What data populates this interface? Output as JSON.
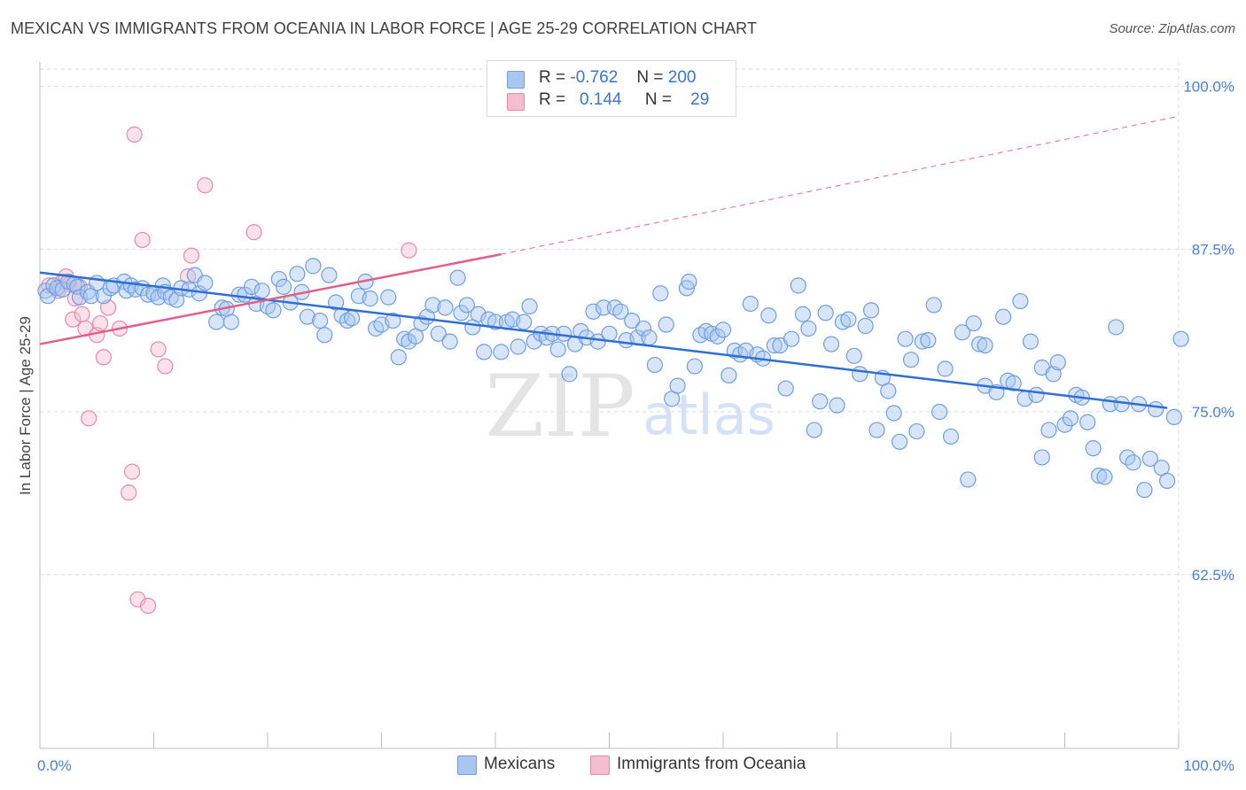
{
  "title": "MEXICAN VS IMMIGRANTS FROM OCEANIA IN LABOR FORCE | AGE 25-29 CORRELATION CHART",
  "source": "Source: ZipAtlas.com",
  "watermark": {
    "zip": "ZIP",
    "atlas": "atlas"
  },
  "colors": {
    "blue_fill": "#a9c6f0",
    "blue_stroke": "#6f9fe0",
    "blue_line": "#2f6fd4",
    "pink_fill": "#f6bdd0",
    "pink_stroke": "#e68bab",
    "pink_line": "#e0608c",
    "grid": "#d9d9d9",
    "tick_text": "#4a7fd4"
  },
  "legend": {
    "rows": [
      {
        "r_label": "R =",
        "r_value": "-0.762",
        "n_label": "N =",
        "n_value": "200"
      },
      {
        "r_label": "R =",
        "r_value": "0.144",
        "n_label": "N =",
        "n_value": "29"
      }
    ]
  },
  "bottom_legend": {
    "series1": "Mexicans",
    "series2": "Immigrants from Oceania"
  },
  "chart_data": {
    "type": "scatter",
    "title": "MEXICAN VS IMMIGRANTS FROM OCEANIA IN LABOR FORCE | AGE 25-29 CORRELATION CHART",
    "xlabel": "",
    "ylabel": "In Labor Force | Age 25-29",
    "xlim": [
      0,
      100
    ],
    "ylim": [
      50,
      102
    ],
    "x_tick_labels": [
      "0.0%",
      "100.0%"
    ],
    "y_ticks": [
      62.5,
      75.0,
      87.5,
      100.0
    ],
    "y_tick_labels": [
      "62.5%",
      "75.0%",
      "87.5%",
      "100.0%"
    ],
    "grid": true,
    "legend_position": "top-center",
    "series": [
      {
        "name": "Mexicans",
        "r": -0.762,
        "n": 200,
        "trend": {
          "x": [
            0,
            99
          ],
          "y": [
            85.7,
            75.3
          ],
          "dashed_extension": false
        },
        "points": [
          [
            0.5,
            84.3
          ],
          [
            0.7,
            83.9
          ],
          [
            1.2,
            84.7
          ],
          [
            1.5,
            84.5
          ],
          [
            2,
            84.4
          ],
          [
            2.5,
            85.0
          ],
          [
            3,
            84.8
          ],
          [
            3.3,
            84.6
          ],
          [
            3.5,
            83.8
          ],
          [
            4.2,
            84.2
          ],
          [
            4.5,
            83.9
          ],
          [
            5,
            84.9
          ],
          [
            5.6,
            83.9
          ],
          [
            6.2,
            84.5
          ],
          [
            6.5,
            84.7
          ],
          [
            7.4,
            85.0
          ],
          [
            7.6,
            84.3
          ],
          [
            8,
            84.7
          ],
          [
            8.4,
            84.4
          ],
          [
            9,
            84.5
          ],
          [
            9.5,
            84.0
          ],
          [
            10,
            84.1
          ],
          [
            10.4,
            83.8
          ],
          [
            10.8,
            84.7
          ],
          [
            11,
            84.2
          ],
          [
            11.5,
            83.8
          ],
          [
            12,
            83.6
          ],
          [
            12.4,
            84.5
          ],
          [
            13.1,
            84.4
          ],
          [
            13.6,
            85.5
          ],
          [
            14,
            84.1
          ],
          [
            14.5,
            84.9
          ],
          [
            15.5,
            81.9
          ],
          [
            16,
            83.0
          ],
          [
            16.4,
            82.9
          ],
          [
            16.8,
            81.9
          ],
          [
            17.5,
            84.0
          ],
          [
            18,
            84.0
          ],
          [
            18.6,
            84.6
          ],
          [
            19,
            83.3
          ],
          [
            19.5,
            84.3
          ],
          [
            20,
            83.1
          ],
          [
            20.5,
            82.8
          ],
          [
            21,
            85.2
          ],
          [
            21.4,
            84.6
          ],
          [
            22,
            83.4
          ],
          [
            22.6,
            85.6
          ],
          [
            23,
            84.2
          ],
          [
            23.5,
            82.3
          ],
          [
            24,
            86.2
          ],
          [
            24.6,
            82.0
          ],
          [
            25,
            80.9
          ],
          [
            25.4,
            85.5
          ],
          [
            26,
            83.4
          ],
          [
            26.5,
            82.4
          ],
          [
            27,
            82.0
          ],
          [
            27.4,
            82.2
          ],
          [
            28,
            83.9
          ],
          [
            28.6,
            85.0
          ],
          [
            29,
            83.7
          ],
          [
            29.5,
            81.4
          ],
          [
            30,
            81.7
          ],
          [
            30.6,
            83.8
          ],
          [
            31,
            82.0
          ],
          [
            31.5,
            79.2
          ],
          [
            32,
            80.6
          ],
          [
            32.4,
            80.4
          ],
          [
            33,
            80.8
          ],
          [
            33.5,
            81.8
          ],
          [
            34,
            82.3
          ],
          [
            34.5,
            83.2
          ],
          [
            35,
            81.0
          ],
          [
            35.6,
            83.0
          ],
          [
            36,
            80.4
          ],
          [
            36.7,
            85.3
          ],
          [
            37,
            82.6
          ],
          [
            37.5,
            83.2
          ],
          [
            38,
            81.5
          ],
          [
            38.5,
            82.5
          ],
          [
            39,
            79.6
          ],
          [
            39.4,
            82.1
          ],
          [
            40,
            81.9
          ],
          [
            40.5,
            79.6
          ],
          [
            41,
            81.9
          ],
          [
            41.5,
            82.1
          ],
          [
            42,
            80.0
          ],
          [
            42.5,
            81.9
          ],
          [
            43,
            83.1
          ],
          [
            43.4,
            80.4
          ],
          [
            44,
            81.0
          ],
          [
            44.5,
            80.7
          ],
          [
            45,
            81.0
          ],
          [
            45.5,
            79.8
          ],
          [
            46,
            81.0
          ],
          [
            46.5,
            77.9
          ],
          [
            47,
            80.2
          ],
          [
            47.5,
            81.2
          ],
          [
            48,
            80.7
          ],
          [
            48.6,
            82.7
          ],
          [
            49,
            80.4
          ],
          [
            49.5,
            83.0
          ],
          [
            50,
            81.0
          ],
          [
            50.5,
            83.0
          ],
          [
            51,
            82.7
          ],
          [
            51.5,
            80.5
          ],
          [
            52,
            82.0
          ],
          [
            52.5,
            80.7
          ],
          [
            53,
            81.4
          ],
          [
            53.5,
            80.7
          ],
          [
            54,
            78.6
          ],
          [
            54.5,
            84.1
          ],
          [
            55,
            81.7
          ],
          [
            55.5,
            76.0
          ],
          [
            56,
            77.0
          ],
          [
            56.8,
            84.5
          ],
          [
            57,
            85.0
          ],
          [
            57.5,
            78.5
          ],
          [
            58,
            80.9
          ],
          [
            58.5,
            81.2
          ],
          [
            59,
            81.0
          ],
          [
            59.5,
            80.8
          ],
          [
            60,
            81.3
          ],
          [
            60.5,
            77.8
          ],
          [
            61,
            79.7
          ],
          [
            61.5,
            79.4
          ],
          [
            62,
            79.7
          ],
          [
            62.4,
            83.3
          ],
          [
            63,
            79.4
          ],
          [
            63.5,
            79.1
          ],
          [
            64,
            82.4
          ],
          [
            64.5,
            80.1
          ],
          [
            65,
            80.1
          ],
          [
            65.5,
            76.8
          ],
          [
            66,
            80.6
          ],
          [
            66.6,
            84.7
          ],
          [
            67,
            82.5
          ],
          [
            67.5,
            81.4
          ],
          [
            68,
            73.6
          ],
          [
            68.5,
            75.8
          ],
          [
            69,
            82.6
          ],
          [
            69.5,
            80.2
          ],
          [
            70,
            75.5
          ],
          [
            70.5,
            81.9
          ],
          [
            71,
            82.1
          ],
          [
            71.5,
            79.3
          ],
          [
            72,
            77.9
          ],
          [
            72.5,
            81.6
          ],
          [
            73,
            82.8
          ],
          [
            73.5,
            73.6
          ],
          [
            74,
            77.6
          ],
          [
            74.5,
            76.6
          ],
          [
            75,
            74.9
          ],
          [
            75.5,
            72.7
          ],
          [
            76,
            80.6
          ],
          [
            76.5,
            79.0
          ],
          [
            77,
            73.5
          ],
          [
            77.5,
            80.4
          ],
          [
            78,
            80.5
          ],
          [
            78.5,
            83.2
          ],
          [
            79,
            75.0
          ],
          [
            79.5,
            78.3
          ],
          [
            80,
            73.1
          ],
          [
            81,
            81.1
          ],
          [
            81.5,
            69.8
          ],
          [
            82,
            81.8
          ],
          [
            82.5,
            80.2
          ],
          [
            83,
            80.1
          ],
          [
            83,
            77.0
          ],
          [
            84,
            76.5
          ],
          [
            84.6,
            82.3
          ],
          [
            85,
            77.4
          ],
          [
            85.5,
            77.2
          ],
          [
            86.1,
            83.5
          ],
          [
            86.5,
            76.0
          ],
          [
            87,
            80.4
          ],
          [
            87.5,
            76.3
          ],
          [
            88,
            71.5
          ],
          [
            88,
            78.4
          ],
          [
            88.6,
            73.6
          ],
          [
            89,
            77.9
          ],
          [
            89.4,
            78.8
          ],
          [
            90,
            74.0
          ],
          [
            90.5,
            74.5
          ],
          [
            91,
            76.3
          ],
          [
            91.5,
            76.1
          ],
          [
            92,
            74.2
          ],
          [
            92.5,
            72.2
          ],
          [
            93,
            70.1
          ],
          [
            93.5,
            70.0
          ],
          [
            94,
            75.6
          ],
          [
            95,
            75.6
          ],
          [
            95.5,
            71.5
          ],
          [
            96,
            71.1
          ],
          [
            96.5,
            75.6
          ],
          [
            97,
            69.0
          ],
          [
            97.5,
            71.4
          ],
          [
            98,
            75.2
          ],
          [
            98.5,
            70.7
          ],
          [
            99,
            69.7
          ],
          [
            99.6,
            74.6
          ],
          [
            100.2,
            80.6
          ],
          [
            94.5,
            81.5
          ]
        ]
      },
      {
        "name": "Immigrants from Oceania",
        "r": 0.144,
        "n": 29,
        "trend": {
          "x": [
            0,
            40.5,
            100
          ],
          "y": [
            80.2,
            87.1,
            97.7
          ],
          "dashed_extension": true
        },
        "points": [
          [
            0.8,
            84.7
          ],
          [
            1.6,
            84.3
          ],
          [
            2,
            85.0
          ],
          [
            2.3,
            85.4
          ],
          [
            2.6,
            84.8
          ],
          [
            2.9,
            82.1
          ],
          [
            3.1,
            83.7
          ],
          [
            3.5,
            84.6
          ],
          [
            3.7,
            82.5
          ],
          [
            4,
            81.4
          ],
          [
            4.3,
            74.5
          ],
          [
            5,
            80.9
          ],
          [
            5.3,
            81.8
          ],
          [
            5.6,
            79.2
          ],
          [
            6,
            83.0
          ],
          [
            7,
            81.4
          ],
          [
            7.8,
            68.8
          ],
          [
            8.1,
            70.4
          ],
          [
            8.3,
            96.3
          ],
          [
            8.6,
            60.6
          ],
          [
            9,
            88.2
          ],
          [
            9.5,
            60.1
          ],
          [
            10.4,
            79.8
          ],
          [
            11,
            78.5
          ],
          [
            13,
            85.4
          ],
          [
            13.3,
            87.0
          ],
          [
            14.5,
            92.4
          ],
          [
            18.8,
            88.8
          ],
          [
            32.4,
            87.4
          ]
        ]
      }
    ]
  }
}
